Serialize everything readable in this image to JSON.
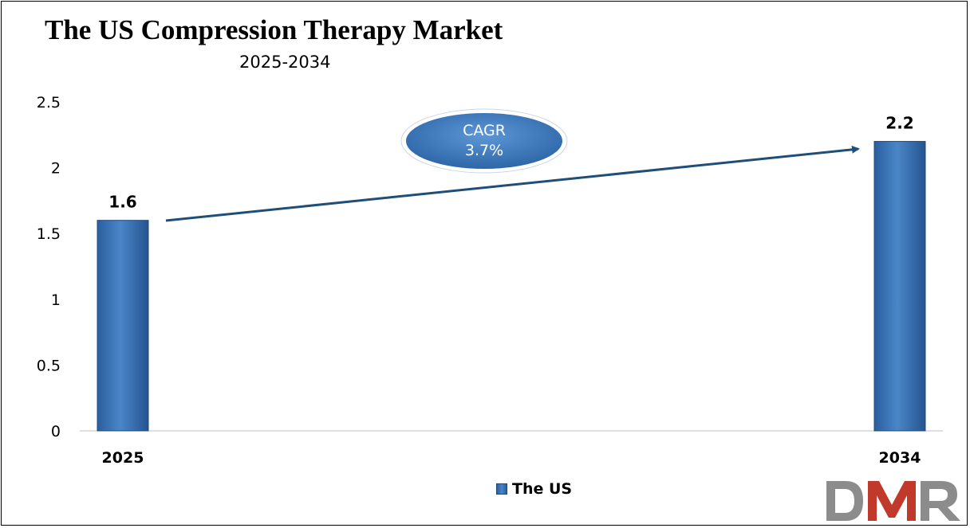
{
  "title": "The US Compression Therapy Market",
  "subtitle": "2025-2034",
  "annotation": {
    "line1": "CAGR",
    "line2": "3.7%"
  },
  "legend": {
    "label": "The US"
  },
  "logo": {
    "text": "DMR"
  },
  "colors": {
    "bar": "#3a76bb",
    "bar_dark": "#24548f",
    "arrow": "#1f4e79",
    "bubble": "#3e7cc0",
    "logo_grey": "#8c8c8c",
    "logo_red": "#c0392b"
  },
  "chart_data": {
    "type": "bar",
    "categories": [
      "2025",
      "2034"
    ],
    "series": [
      {
        "name": "The US",
        "values": [
          1.6,
          2.2
        ]
      }
    ],
    "data_labels": [
      "1.6",
      "2.2"
    ],
    "ylim": [
      0,
      2.5
    ],
    "yticks": [
      "0",
      "0.5",
      "1",
      "1.5",
      "2",
      "2.5"
    ],
    "grid": false,
    "legend_position": "bottom"
  }
}
